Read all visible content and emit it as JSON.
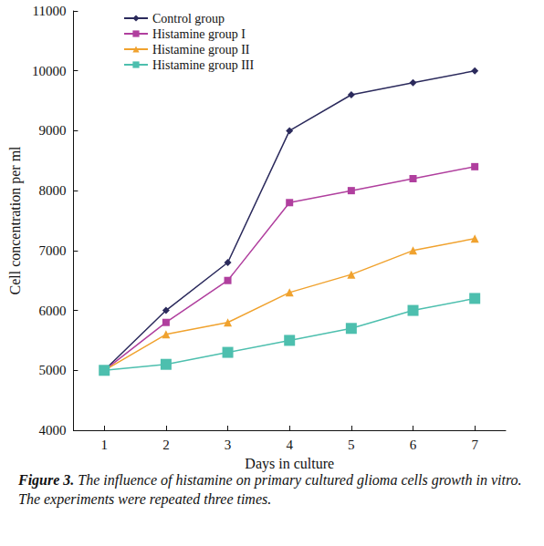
{
  "chart_data": {
    "type": "line",
    "caption": "Figure 3. The influence of histamine on primary cultured glioma cells growth in vitro. The experiments were repeated three times.",
    "x_label": "Days in culture",
    "y_label": "Cell concentration per ml",
    "categories": [
      "1",
      "2",
      "3",
      "4",
      "5",
      "6",
      "7"
    ],
    "series": [
      {
        "name": "Control group",
        "color": "#2b2a5c",
        "marker": "diamond",
        "values": [
          5000,
          6000,
          6800,
          9000,
          9600,
          9800,
          10000
        ]
      },
      {
        "name": "Histamine group I",
        "color": "#b03f9e",
        "marker": "square",
        "values": [
          5000,
          5800,
          6500,
          7800,
          8000,
          8200,
          8400
        ]
      },
      {
        "name": "Histamine group II",
        "color": "#f0a22e",
        "marker": "triangle",
        "values": [
          5000,
          5600,
          5800,
          6300,
          6600,
          7000,
          7200
        ]
      },
      {
        "name": "Histamine group III",
        "color": "#4dbfae",
        "marker": "square",
        "values": [
          5000,
          5100,
          5300,
          5500,
          5700,
          6000,
          6200
        ]
      }
    ],
    "ylim": [
      4000,
      11000
    ],
    "yticks": [
      4000,
      5000,
      6000,
      7000,
      8000,
      9000,
      10000,
      11000
    ],
    "grid": false,
    "legend": "upper left"
  }
}
